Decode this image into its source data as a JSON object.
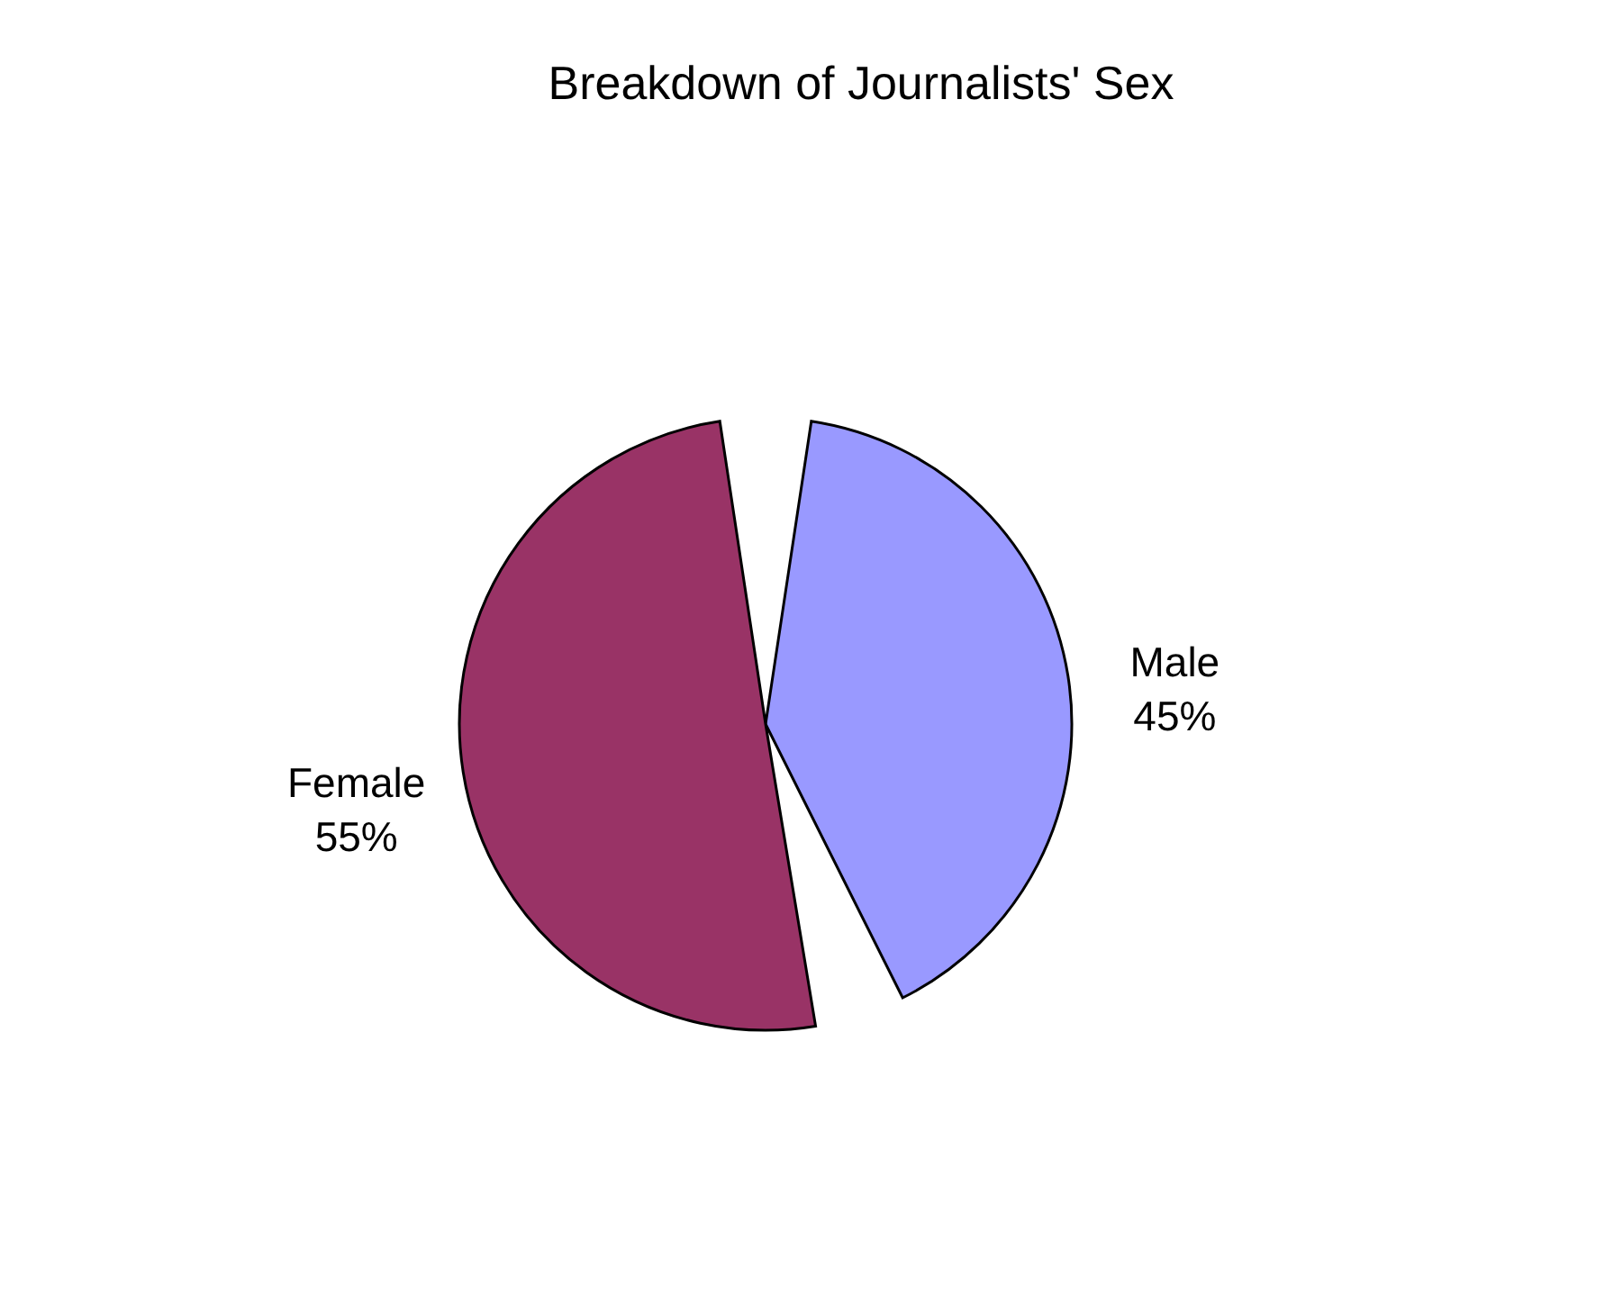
{
  "chart_data": {
    "type": "pie",
    "title": "Breakdown of Journalists' Sex",
    "categories": [
      "Male",
      "Female"
    ],
    "values": [
      45,
      55
    ],
    "colors": [
      "#9999ff",
      "#993366"
    ],
    "value_labels": [
      "45%",
      "55%"
    ],
    "legend": false
  }
}
